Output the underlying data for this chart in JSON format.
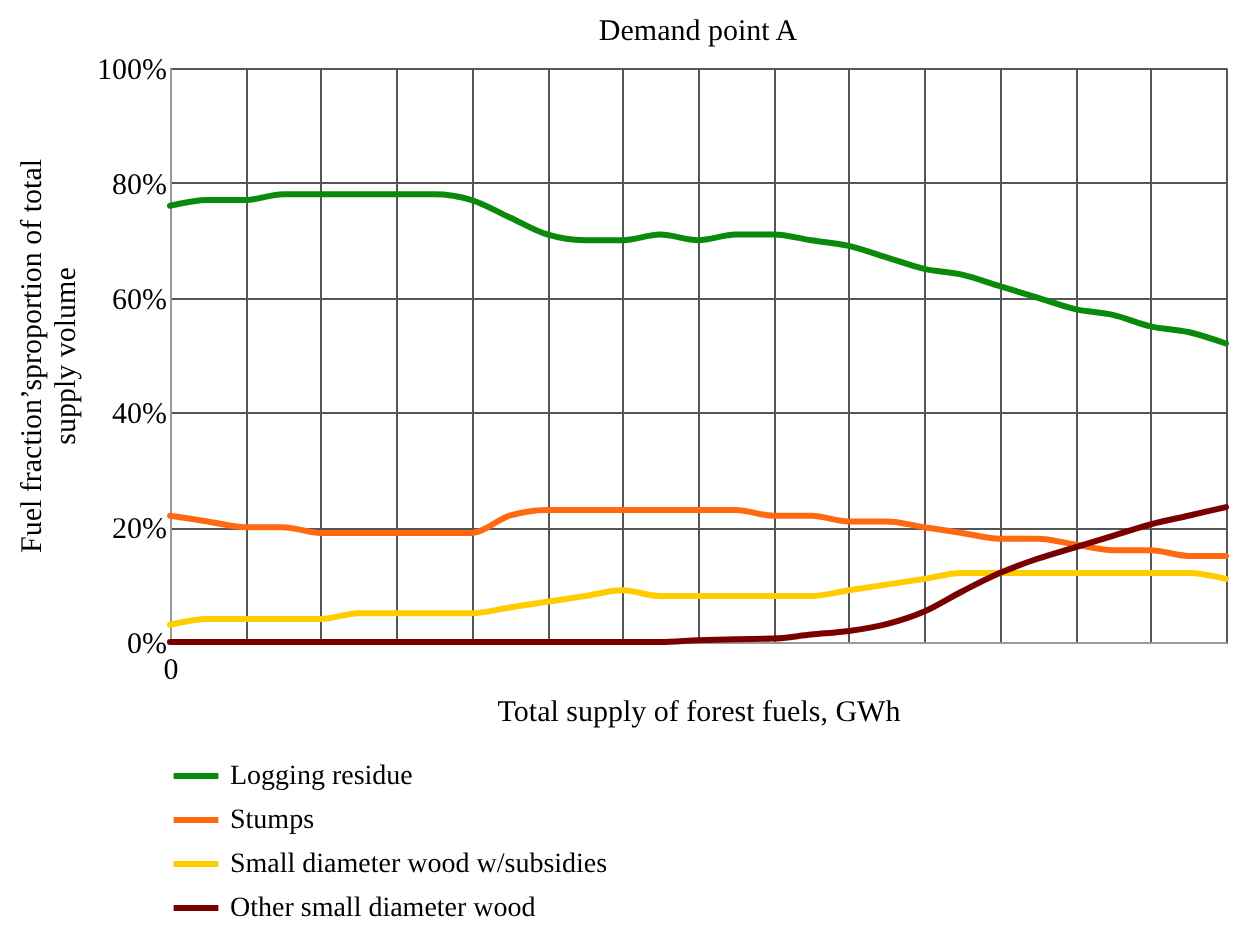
{
  "chart_data": {
    "type": "line",
    "title": "Demand point A",
    "xlabel": "Total supply of  forest fuels, GWh",
    "ylabel": "Fuel fraction’sproportion of total\nsupply  volume",
    "categories": [
      "0",
      null,
      null,
      null,
      null,
      null,
      null,
      null,
      null,
      null,
      null,
      null,
      null,
      null,
      null,
      null,
      null,
      null,
      null,
      null,
      null,
      null,
      null,
      null,
      null,
      null,
      null,
      null,
      null
    ],
    "series": [
      {
        "name": "Logging residue",
        "color": "#0a8a0a",
        "values": [
          76,
          77,
          77,
          78,
          78,
          78,
          78,
          78,
          77,
          74,
          71,
          70,
          70,
          71,
          70,
          71,
          71,
          70,
          69,
          67,
          65,
          64,
          62,
          60,
          58,
          57,
          55,
          54,
          52
        ]
      },
      {
        "name": "Stumps",
        "color": "#ff6a10",
        "values": [
          22,
          21,
          20,
          20,
          19,
          19,
          19,
          19,
          19,
          22,
          23,
          23,
          23,
          23,
          23,
          23,
          22,
          22,
          21,
          21,
          20,
          19,
          18,
          18,
          17,
          16,
          16,
          15,
          15
        ]
      },
      {
        "name": "Small diameter wood w/subsidies",
        "color": "#ffcc00",
        "values": [
          3,
          4,
          4,
          4,
          4,
          5,
          5,
          5,
          5,
          6,
          7,
          8,
          9,
          8,
          8,
          8,
          8,
          8,
          9,
          10,
          11,
          12,
          12,
          12,
          12,
          12,
          12,
          12,
          11
        ]
      },
      {
        "name": "Other small diameter wood",
        "color": "#7a0000",
        "values": [
          0,
          0,
          0,
          0,
          0,
          0,
          0,
          0,
          0,
          0,
          0,
          0,
          0,
          0,
          0.3,
          0.5,
          0.6,
          1.3,
          1.9,
          3.1,
          5.3,
          8.8,
          12,
          14.5,
          16.5,
          18.5,
          20.5,
          22,
          23.5
        ]
      }
    ],
    "ylim": [
      0,
      100
    ],
    "yticks": [
      {
        "value": 0,
        "label": "0%"
      },
      {
        "value": 20,
        "label": "20%"
      },
      {
        "value": 40,
        "label": "40%"
      },
      {
        "value": 60,
        "label": "60%"
      },
      {
        "value": 80,
        "label": "80%"
      },
      {
        "value": 100,
        "label": "100%"
      }
    ],
    "grid": true,
    "legend": "bottom",
    "marker": "none",
    "line_style": "solid"
  }
}
